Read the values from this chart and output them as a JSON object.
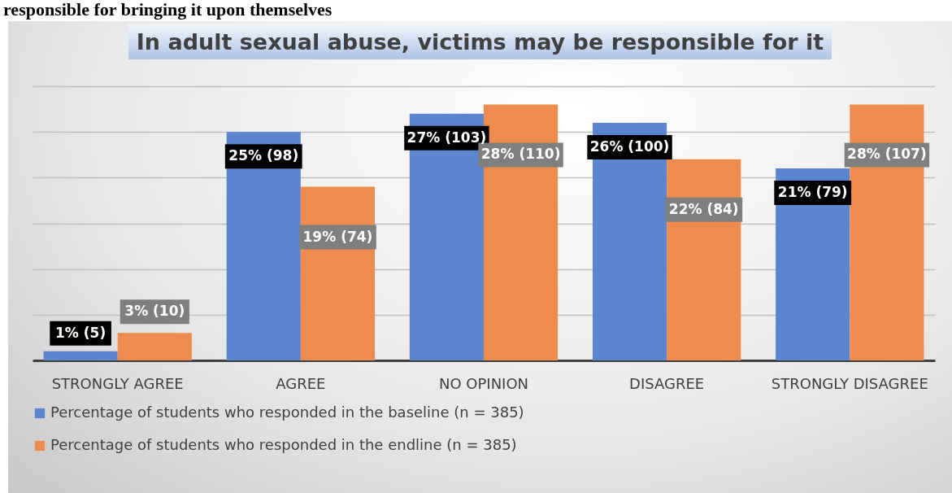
{
  "chart_data": {
    "type": "bar",
    "title": "In adult sexual abuse, victims may be responsible for it",
    "annotations": [
      "responsible for bringing it upon themselves"
    ],
    "categories": [
      "STRONGLY AGREE",
      "AGREE",
      "NO OPINION",
      "DISAGREE",
      "STRONGLY DISAGREE"
    ],
    "series": [
      {
        "name": "Percentage of students who responded in the baseline (n = 385)",
        "color": "#5b85ce",
        "values": [
          1,
          25,
          27,
          26,
          21
        ],
        "value_labels": [
          "1% (5)",
          "25% (98)",
          "27% (103)",
          "26% (100)",
          "21% (79)"
        ]
      },
      {
        "name": "Percentage of students who responded in the endline (n = 385)",
        "color": "#ee8c4f",
        "values": [
          3,
          19,
          28,
          22,
          28
        ],
        "value_labels": [
          "3% (10)",
          "19% (74)",
          "28% (110)",
          "22% (84)",
          "28% (107)"
        ]
      }
    ],
    "ylim": [
      0,
      30
    ],
    "yticks": [
      0,
      5,
      10,
      15,
      20,
      25,
      30
    ],
    "grid": "y",
    "tick_labels": "x",
    "legend": "bottom"
  }
}
